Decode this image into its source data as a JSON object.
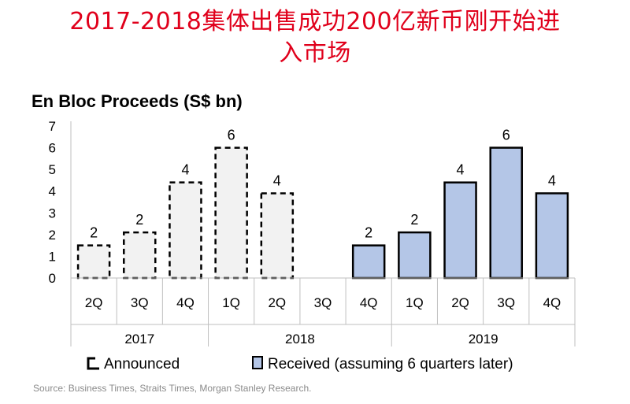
{
  "header": {
    "title_line1": "2017-2018集体出售成功200亿新币刚开始进",
    "title_line2": "入市场"
  },
  "source_note": "Source: Business Times, Straits Times, Morgan Stanley Research.",
  "colors": {
    "title": "#e0001b",
    "announced_fill": "#f2f2f2",
    "received_fill": "#b4c6e7",
    "bar_stroke": "#000000"
  },
  "chart_data": {
    "type": "bar",
    "title": "En Bloc Proceeds (S$ bn)",
    "xlabel": "",
    "ylabel": "S$ bn",
    "ylim": [
      0,
      7
    ],
    "yticks": [
      "0",
      "1",
      "2",
      "3",
      "4",
      "5",
      "6",
      "7"
    ],
    "categories": [
      "2Q",
      "3Q",
      "4Q",
      "1Q",
      "2Q",
      "3Q",
      "4Q",
      "1Q",
      "2Q",
      "3Q",
      "4Q"
    ],
    "year_groups": [
      {
        "label": "2017",
        "span": 3
      },
      {
        "label": "2018",
        "span": 4
      },
      {
        "label": "2019",
        "span": 4
      }
    ],
    "series": [
      {
        "name": "Announced",
        "style": "dashed",
        "values": [
          1.5,
          2.1,
          4.4,
          6.0,
          3.9,
          null,
          null,
          null,
          null,
          null,
          null
        ],
        "labels": [
          "2",
          "2",
          "4",
          "6",
          "4",
          "",
          "",
          "",
          "",
          "",
          ""
        ]
      },
      {
        "name": "Received (assuming 6 quarters later)",
        "style": "solid",
        "values": [
          null,
          null,
          null,
          null,
          null,
          null,
          1.5,
          2.1,
          4.4,
          6.0,
          3.9
        ],
        "labels": [
          "",
          "",
          "",
          "",
          "",
          "",
          "2",
          "2",
          "4",
          "6",
          "4"
        ]
      }
    ],
    "legend": {
      "position": "bottom",
      "items": [
        "Announced",
        "Received (assuming 6 quarters later)"
      ]
    }
  }
}
